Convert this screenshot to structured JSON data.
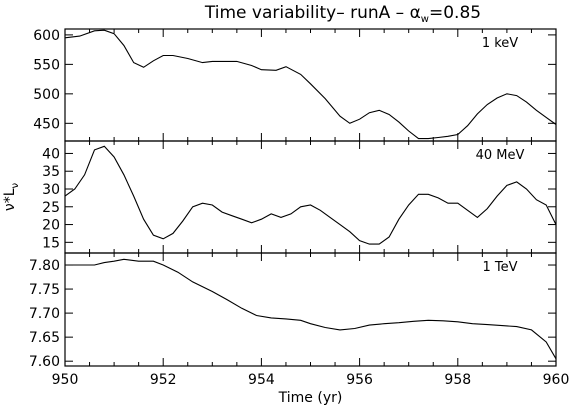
{
  "title_main": "Time variability– runA – ",
  "title_alpha": "α",
  "title_sub": "w",
  "title_tail": "=0.85",
  "chart_data": [
    {
      "type": "line",
      "annotation": "1 keV",
      "xlim": [
        950,
        960
      ],
      "ylim": [
        420,
        610
      ],
      "yticks": [
        450,
        500,
        550,
        600
      ],
      "x": [
        950.0,
        950.3,
        950.6,
        950.8,
        951.0,
        951.2,
        951.4,
        951.6,
        951.8,
        952.0,
        952.2,
        952.5,
        952.8,
        953.0,
        953.2,
        953.5,
        953.8,
        954.0,
        954.3,
        954.5,
        954.8,
        955.0,
        955.3,
        955.6,
        955.8,
        956.0,
        956.2,
        956.4,
        956.6,
        956.8,
        957.0,
        957.2,
        957.4,
        957.6,
        957.8,
        958.0,
        958.2,
        958.4,
        958.6,
        958.8,
        959.0,
        959.2,
        959.4,
        959.6,
        959.8,
        960.0
      ],
      "y": [
        595,
        598,
        607,
        608,
        602,
        582,
        553,
        545,
        556,
        565,
        565,
        560,
        553,
        555,
        555,
        555,
        548,
        541,
        540,
        546,
        533,
        517,
        492,
        462,
        450,
        457,
        468,
        472,
        465,
        452,
        437,
        424,
        424,
        426,
        428,
        431,
        446,
        466,
        482,
        493,
        500,
        497,
        486,
        472,
        460,
        448
      ]
    },
    {
      "type": "line",
      "annotation": "40 MeV",
      "xlim": [
        950,
        960
      ],
      "ylim": [
        12,
        43.5
      ],
      "yticks": [
        15,
        20,
        25,
        30,
        35,
        40
      ],
      "ylabel_main": "ν*L",
      "ylabel_sub": "ν",
      "x": [
        950.0,
        950.2,
        950.4,
        950.6,
        950.8,
        951.0,
        951.2,
        951.4,
        951.6,
        951.8,
        952.0,
        952.2,
        952.4,
        952.6,
        952.8,
        953.0,
        953.2,
        953.4,
        953.6,
        953.8,
        954.0,
        954.2,
        954.4,
        954.6,
        954.8,
        955.0,
        955.2,
        955.4,
        955.6,
        955.8,
        956.0,
        956.2,
        956.4,
        956.6,
        956.8,
        957.0,
        957.2,
        957.4,
        957.6,
        957.8,
        958.0,
        958.2,
        958.4,
        958.6,
        958.8,
        959.0,
        959.2,
        959.4,
        959.6,
        959.8,
        960.0
      ],
      "y": [
        28,
        30,
        34,
        41,
        42,
        39,
        34,
        28,
        21.5,
        17,
        16,
        17.5,
        21,
        25,
        26,
        25.5,
        23.5,
        22.5,
        21.5,
        20.5,
        21.5,
        23,
        22,
        23,
        25,
        25.5,
        24,
        22,
        20,
        18,
        15.5,
        14.5,
        14.5,
        16.5,
        21.5,
        25.5,
        28.5,
        28.5,
        27.5,
        26,
        26,
        24,
        22,
        24.5,
        28,
        31,
        32,
        30,
        27,
        25.5,
        20
      ]
    },
    {
      "type": "line",
      "annotation": "1 TeV",
      "xlim": [
        950,
        960
      ],
      "ylim": [
        7.59,
        7.825
      ],
      "yticks": [
        7.6,
        7.65,
        7.7,
        7.75,
        7.8
      ],
      "xticks": [
        950,
        952,
        954,
        956,
        958,
        960
      ],
      "xlabel": "Time (yr)",
      "x": [
        950.0,
        950.3,
        950.6,
        950.8,
        951.0,
        951.2,
        951.5,
        951.8,
        952.0,
        952.3,
        952.6,
        953.0,
        953.3,
        953.6,
        953.9,
        954.2,
        954.5,
        954.8,
        955.0,
        955.3,
        955.6,
        955.9,
        956.2,
        956.5,
        956.8,
        957.1,
        957.4,
        957.7,
        958.0,
        958.3,
        958.6,
        958.9,
        959.2,
        959.5,
        959.8,
        960.0
      ],
      "y": [
        7.8,
        7.8,
        7.8,
        7.805,
        7.808,
        7.812,
        7.808,
        7.808,
        7.8,
        7.785,
        7.765,
        7.745,
        7.728,
        7.71,
        7.695,
        7.69,
        7.688,
        7.685,
        7.678,
        7.67,
        7.665,
        7.668,
        7.675,
        7.678,
        7.68,
        7.683,
        7.685,
        7.684,
        7.682,
        7.678,
        7.676,
        7.674,
        7.672,
        7.665,
        7.64,
        7.605
      ]
    }
  ]
}
